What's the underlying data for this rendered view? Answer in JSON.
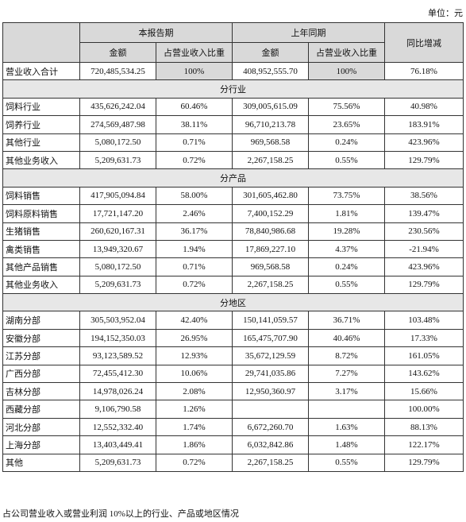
{
  "unit": "单位：元",
  "header": {
    "current_period": "本报告期",
    "prior_period": "上年同期",
    "yoy": "同比增减",
    "sub_headers": [
      "金额",
      "占营业收入比重",
      "金额",
      "占营业收入比重"
    ]
  },
  "total": [
    "营业收入合计",
    "720,485,534.25",
    "100%",
    "408,952,555.70",
    "100%",
    "76.18%"
  ],
  "sections": [
    {
      "title": "分行业",
      "rows": [
        [
          "饲料行业",
          "435,626,242.04",
          "60.46%",
          "309,005,615.09",
          "75.56%",
          "40.98%"
        ],
        [
          "饲养行业",
          "274,569,487.98",
          "38.11%",
          "96,710,213.78",
          "23.65%",
          "183.91%"
        ],
        [
          "其他行业",
          "5,080,172.50",
          "0.71%",
          "969,568.58",
          "0.24%",
          "423.96%"
        ],
        [
          "其他业务收入",
          "5,209,631.73",
          "0.72%",
          "2,267,158.25",
          "0.55%",
          "129.79%"
        ]
      ]
    },
    {
      "title": "分产品",
      "rows": [
        [
          "饲料销售",
          "417,905,094.84",
          "58.00%",
          "301,605,462.80",
          "73.75%",
          "38.56%"
        ],
        [
          "饲料原料销售",
          "17,721,147.20",
          "2.46%",
          "7,400,152.29",
          "1.81%",
          "139.47%"
        ],
        [
          "生猪销售",
          "260,620,167.31",
          "36.17%",
          "78,840,986.68",
          "19.28%",
          "230.56%"
        ],
        [
          "禽类销售",
          "13,949,320.67",
          "1.94%",
          "17,869,227.10",
          "4.37%",
          "-21.94%"
        ],
        [
          "其他产品销售",
          "5,080,172.50",
          "0.71%",
          "969,568.58",
          "0.24%",
          "423.96%"
        ],
        [
          "其他业务收入",
          "5,209,631.73",
          "0.72%",
          "2,267,158.25",
          "0.55%",
          "129.79%"
        ]
      ]
    },
    {
      "title": "分地区",
      "rows": [
        [
          "湖南分部",
          "305,503,952.04",
          "42.40%",
          "150,141,059.57",
          "36.71%",
          "103.48%"
        ],
        [
          "安徽分部",
          "194,152,350.03",
          "26.95%",
          "165,475,707.90",
          "40.46%",
          "17.33%"
        ],
        [
          "江苏分部",
          "93,123,589.52",
          "12.93%",
          "35,672,129.59",
          "8.72%",
          "161.05%"
        ],
        [
          "广西分部",
          "72,455,412.30",
          "10.06%",
          "29,741,035.86",
          "7.27%",
          "143.62%"
        ],
        [
          "吉林分部",
          "14,978,026.24",
          "2.08%",
          "12,950,360.97",
          "3.17%",
          "15.66%"
        ],
        [
          "西藏分部",
          "9,106,790.58",
          "1.26%",
          null,
          null,
          "100.00%"
        ],
        [
          "河北分部",
          "12,552,332.40",
          "1.74%",
          "6,672,260.70",
          "1.63%",
          "88.13%"
        ],
        [
          "上海分部",
          "13,403,449.41",
          "1.86%",
          "6,032,842.86",
          "1.48%",
          "122.17%"
        ],
        [
          "其他",
          "5,209,631.73",
          "0.72%",
          "2,267,158.25",
          "0.55%",
          "129.79%"
        ]
      ]
    }
  ],
  "footnote": "占公司营业收入或营业利润 10%以上的行业、产品或地区情况"
}
